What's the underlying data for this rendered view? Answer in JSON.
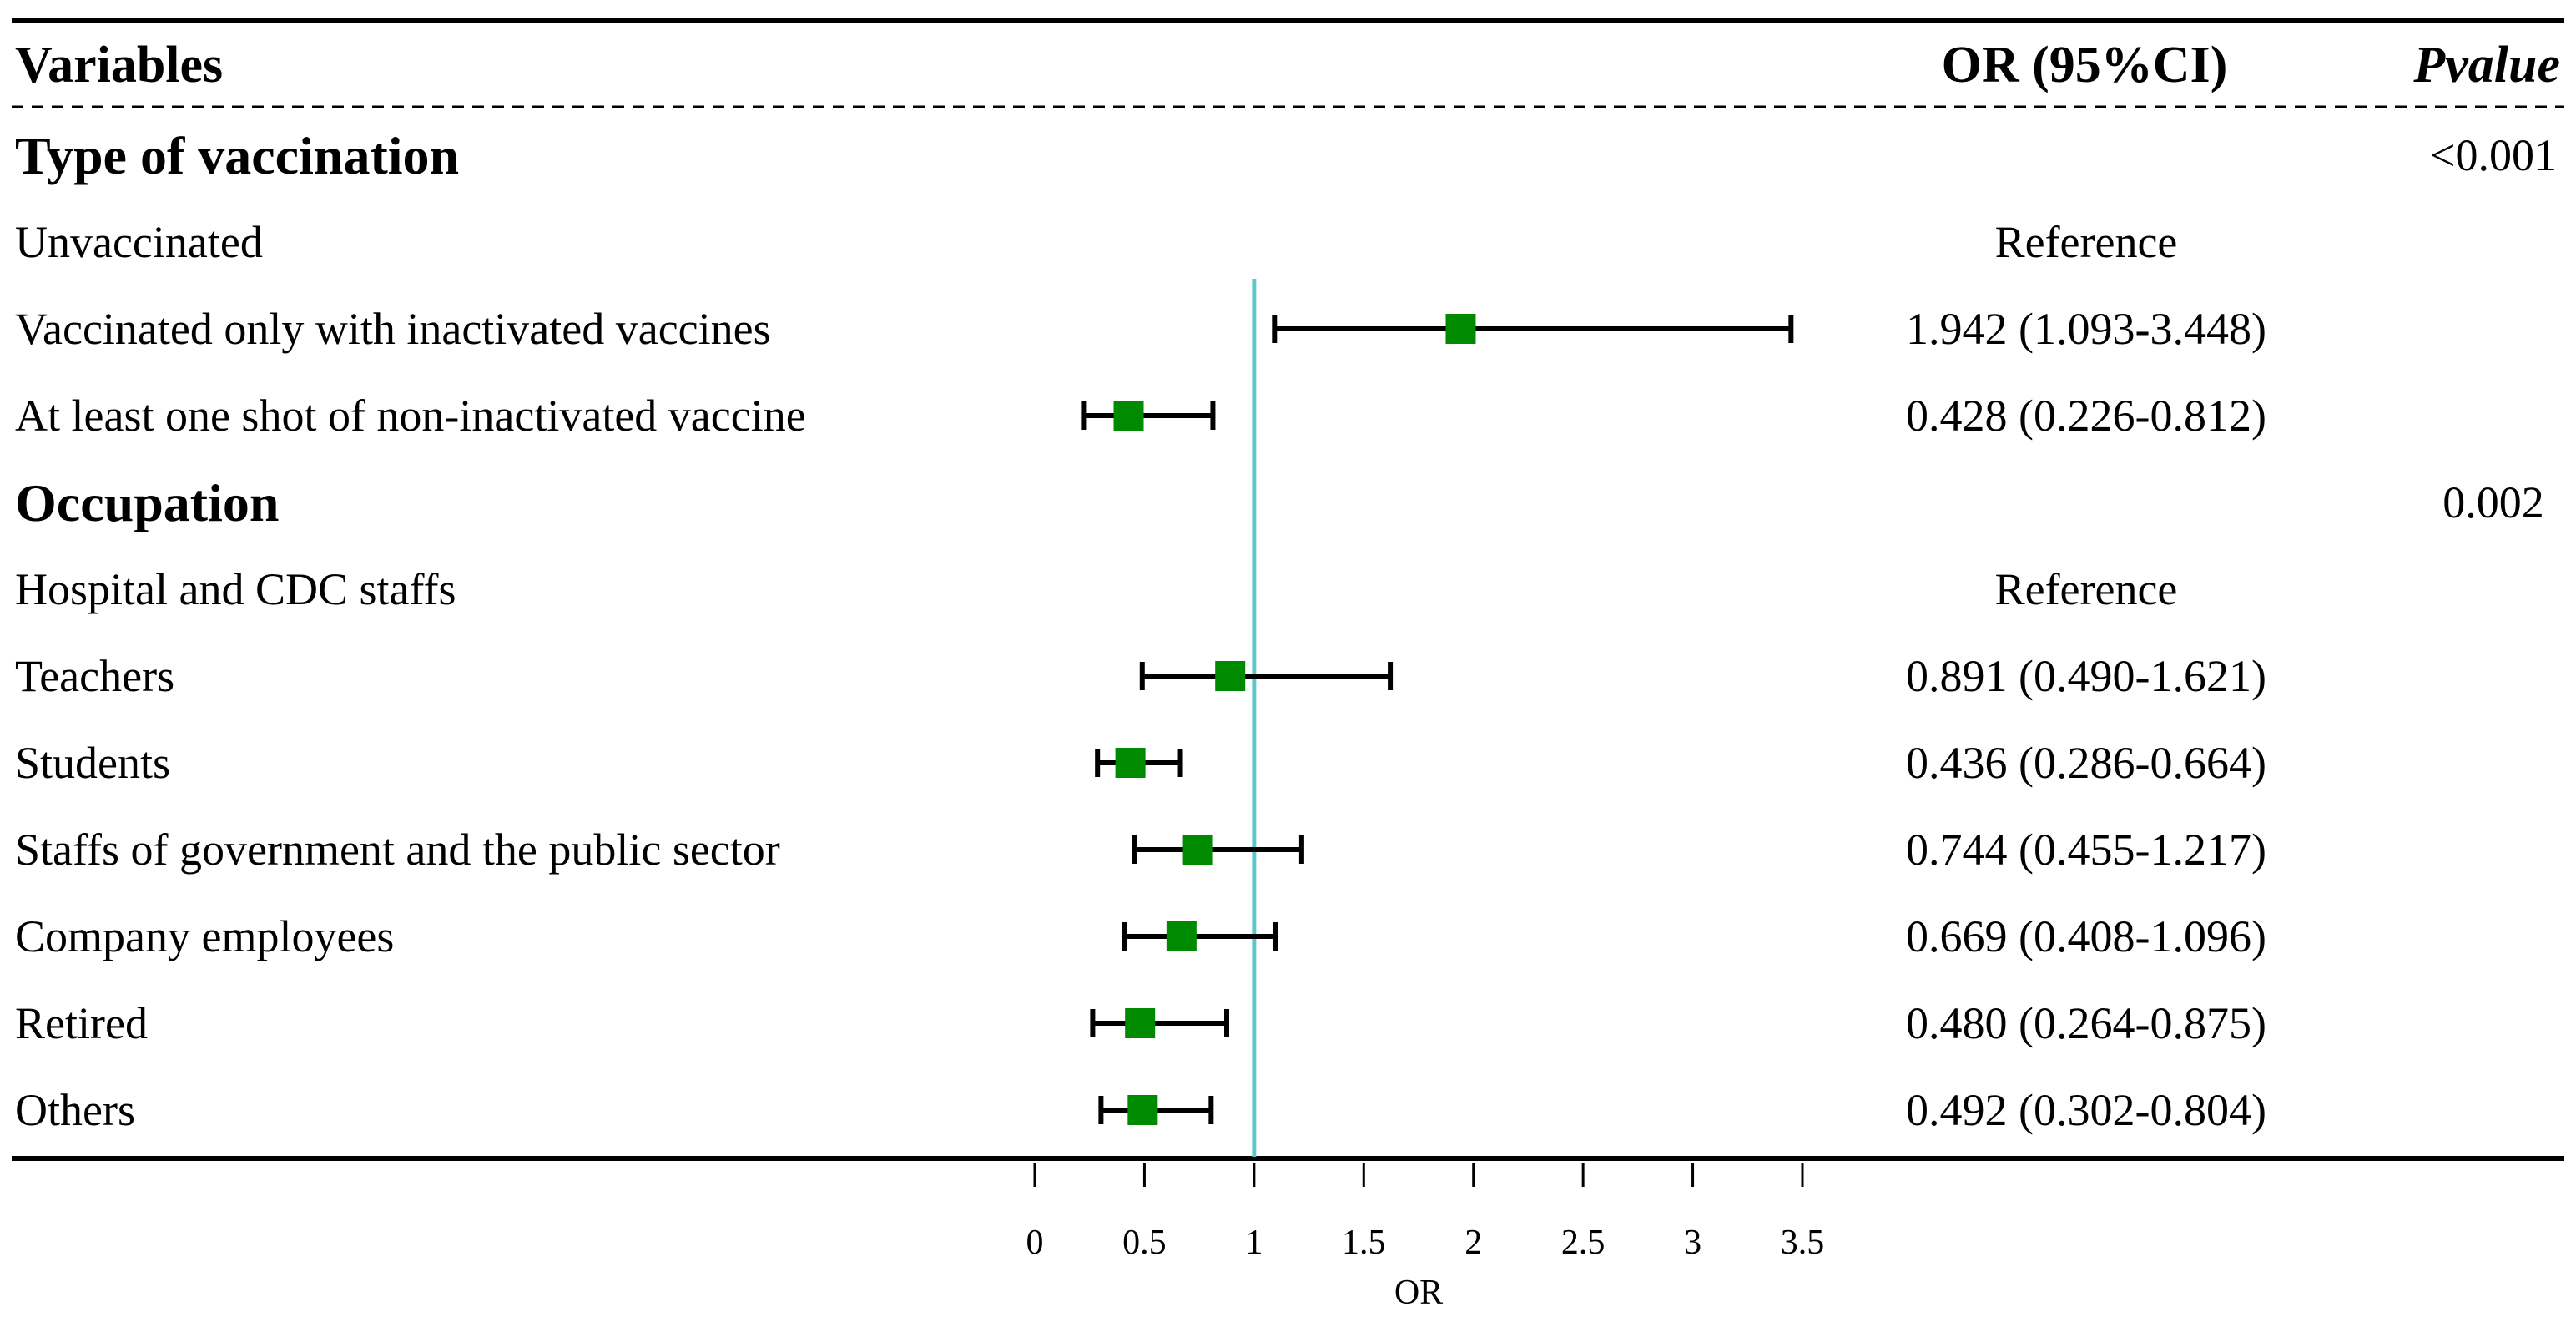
{
  "header": {
    "variables": "Variables",
    "or_ci": "OR (95%CI)",
    "pvalue": "Pvalue"
  },
  "groups": [
    {
      "title": "Type of vaccination",
      "pvalue": "<0.001"
    },
    {
      "title": "Occupation",
      "pvalue": "0.002"
    }
  ],
  "rows": [
    {
      "group": 0,
      "label": "Unvaccinated",
      "or_text": "Reference",
      "reference": true
    },
    {
      "group": 0,
      "label": "Vaccinated only with inactivated vaccines",
      "or_text": "1.942 (1.093-3.448)",
      "or": 1.942,
      "lo": 1.093,
      "hi": 3.448
    },
    {
      "group": 0,
      "label": "At least one shot of non-inactivated vaccine",
      "or_text": "0.428 (0.226-0.812)",
      "or": 0.428,
      "lo": 0.226,
      "hi": 0.812
    },
    {
      "group": 1,
      "label": "Hospital and CDC staffs",
      "or_text": "Reference",
      "reference": true
    },
    {
      "group": 1,
      "label": "Teachers",
      "or_text": "0.891 (0.490-1.621)",
      "or": 0.891,
      "lo": 0.49,
      "hi": 1.621
    },
    {
      "group": 1,
      "label": "Students",
      "or_text": "0.436 (0.286-0.664)",
      "or": 0.436,
      "lo": 0.286,
      "hi": 0.664
    },
    {
      "group": 1,
      "label": "Staffs of government and the public sector",
      "or_text": "0.744 (0.455-1.217)",
      "or": 0.744,
      "lo": 0.455,
      "hi": 1.217
    },
    {
      "group": 1,
      "label": "Company employees",
      "or_text": "0.669 (0.408-1.096)",
      "or": 0.669,
      "lo": 0.408,
      "hi": 1.096
    },
    {
      "group": 1,
      "label": "Retired",
      "or_text": "0.480 (0.264-0.875)",
      "or": 0.48,
      "lo": 0.264,
      "hi": 0.875
    },
    {
      "group": 1,
      "label": "Others",
      "or_text": "0.492 (0.302-0.804)",
      "or": 0.492,
      "lo": 0.302,
      "hi": 0.804
    }
  ],
  "chart_data": {
    "type": "forest",
    "xlabel": "OR",
    "xlim": [
      0,
      3.5
    ],
    "ticks": [
      0,
      0.5,
      1,
      1.5,
      2,
      2.5,
      3,
      3.5
    ],
    "tick_labels": [
      "0",
      "0.5",
      "1",
      "1.5",
      "2",
      "2.5",
      "3",
      "3.5"
    ],
    "reference_line": 1,
    "colors": {
      "marker": "#008a00",
      "reference_line": "#5cc8cc",
      "whisker": "#000000"
    },
    "series": [
      {
        "name": "Vaccinated only with inactivated vaccines",
        "or": 1.942,
        "lo": 1.093,
        "hi": 3.448
      },
      {
        "name": "At least one shot of non-inactivated vaccine",
        "or": 0.428,
        "lo": 0.226,
        "hi": 0.812
      },
      {
        "name": "Teachers",
        "or": 0.891,
        "lo": 0.49,
        "hi": 1.621
      },
      {
        "name": "Students",
        "or": 0.436,
        "lo": 0.286,
        "hi": 0.664
      },
      {
        "name": "Staffs of government and the public sector",
        "or": 0.744,
        "lo": 0.455,
        "hi": 1.217
      },
      {
        "name": "Company employees",
        "or": 0.669,
        "lo": 0.408,
        "hi": 1.096
      },
      {
        "name": "Retired",
        "or": 0.48,
        "lo": 0.264,
        "hi": 0.875
      },
      {
        "name": "Others",
        "or": 0.492,
        "lo": 0.302,
        "hi": 0.804
      }
    ]
  }
}
